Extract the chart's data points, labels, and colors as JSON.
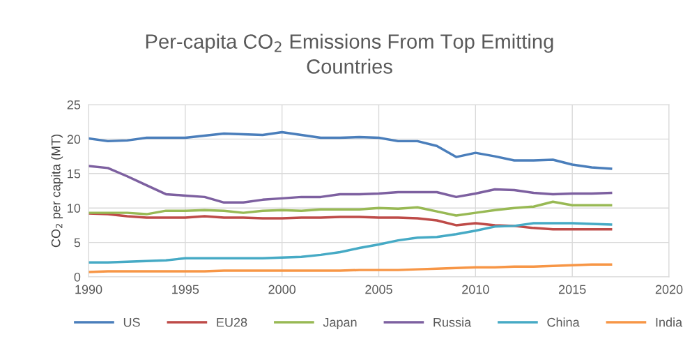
{
  "chart_data": {
    "type": "line",
    "title": "Per-capita CO$_{2}$ Emissions From Top Emitting\nCountries",
    "ylabel": "CO$_{2}$ per capita (MT)",
    "x": [
      1990,
      1991,
      1992,
      1993,
      1994,
      1995,
      1996,
      1997,
      1998,
      1999,
      2000,
      2001,
      2002,
      2003,
      2004,
      2005,
      2006,
      2007,
      2008,
      2009,
      2010,
      2011,
      2012,
      2013,
      2014,
      2015,
      2016,
      2017
    ],
    "series": [
      {
        "name": "US",
        "color": "#4a7ebb",
        "values": [
          20.1,
          19.7,
          19.8,
          20.2,
          20.2,
          20.2,
          20.5,
          20.8,
          20.7,
          20.6,
          21.0,
          20.6,
          20.2,
          20.2,
          20.3,
          20.2,
          19.7,
          19.7,
          19.0,
          17.4,
          18.0,
          17.5,
          16.9,
          16.9,
          17.0,
          16.3,
          15.9,
          15.7
        ]
      },
      {
        "name": "EU28",
        "color": "#be4b48",
        "values": [
          9.2,
          9.1,
          8.8,
          8.6,
          8.6,
          8.6,
          8.8,
          8.6,
          8.6,
          8.5,
          8.5,
          8.6,
          8.6,
          8.7,
          8.7,
          8.6,
          8.6,
          8.5,
          8.2,
          7.5,
          7.8,
          7.5,
          7.4,
          7.1,
          6.9,
          6.9,
          6.9,
          6.9
        ]
      },
      {
        "name": "Japan",
        "color": "#98b954",
        "values": [
          9.3,
          9.3,
          9.3,
          9.1,
          9.6,
          9.6,
          9.7,
          9.6,
          9.3,
          9.6,
          9.7,
          9.6,
          9.8,
          9.8,
          9.8,
          10.0,
          9.9,
          10.1,
          9.5,
          8.9,
          9.3,
          9.7,
          10.0,
          10.2,
          10.9,
          10.4,
          10.4,
          10.4
        ]
      },
      {
        "name": "Russia",
        "color": "#7d60a0",
        "values": [
          16.1,
          15.8,
          14.6,
          13.3,
          12.0,
          11.8,
          11.6,
          10.8,
          10.8,
          11.2,
          11.4,
          11.6,
          11.6,
          12.0,
          12.0,
          12.1,
          12.3,
          12.3,
          12.3,
          11.6,
          12.1,
          12.7,
          12.6,
          12.2,
          12.0,
          12.1,
          12.1,
          12.2
        ]
      },
      {
        "name": "China",
        "color": "#46aac5",
        "values": [
          2.1,
          2.1,
          2.2,
          2.3,
          2.4,
          2.7,
          2.7,
          2.7,
          2.7,
          2.7,
          2.8,
          2.9,
          3.2,
          3.6,
          4.2,
          4.7,
          5.3,
          5.7,
          5.8,
          6.2,
          6.7,
          7.3,
          7.4,
          7.8,
          7.8,
          7.8,
          7.7,
          7.6
        ]
      },
      {
        "name": "India",
        "color": "#f79646",
        "values": [
          0.7,
          0.8,
          0.8,
          0.8,
          0.8,
          0.8,
          0.8,
          0.9,
          0.9,
          0.9,
          0.9,
          0.9,
          0.9,
          0.9,
          1.0,
          1.0,
          1.0,
          1.1,
          1.2,
          1.3,
          1.4,
          1.4,
          1.5,
          1.5,
          1.6,
          1.7,
          1.8,
          1.8
        ]
      }
    ],
    "xlim": [
      1990,
      2020
    ],
    "xticks": [
      1990,
      1995,
      2000,
      2005,
      2010,
      2015,
      2020
    ],
    "ylim": [
      0,
      25
    ],
    "yticks": [
      0,
      5,
      10,
      15,
      20,
      25
    ],
    "grid": true,
    "legend": "bottom",
    "marker": "none",
    "line_style": "solid"
  }
}
